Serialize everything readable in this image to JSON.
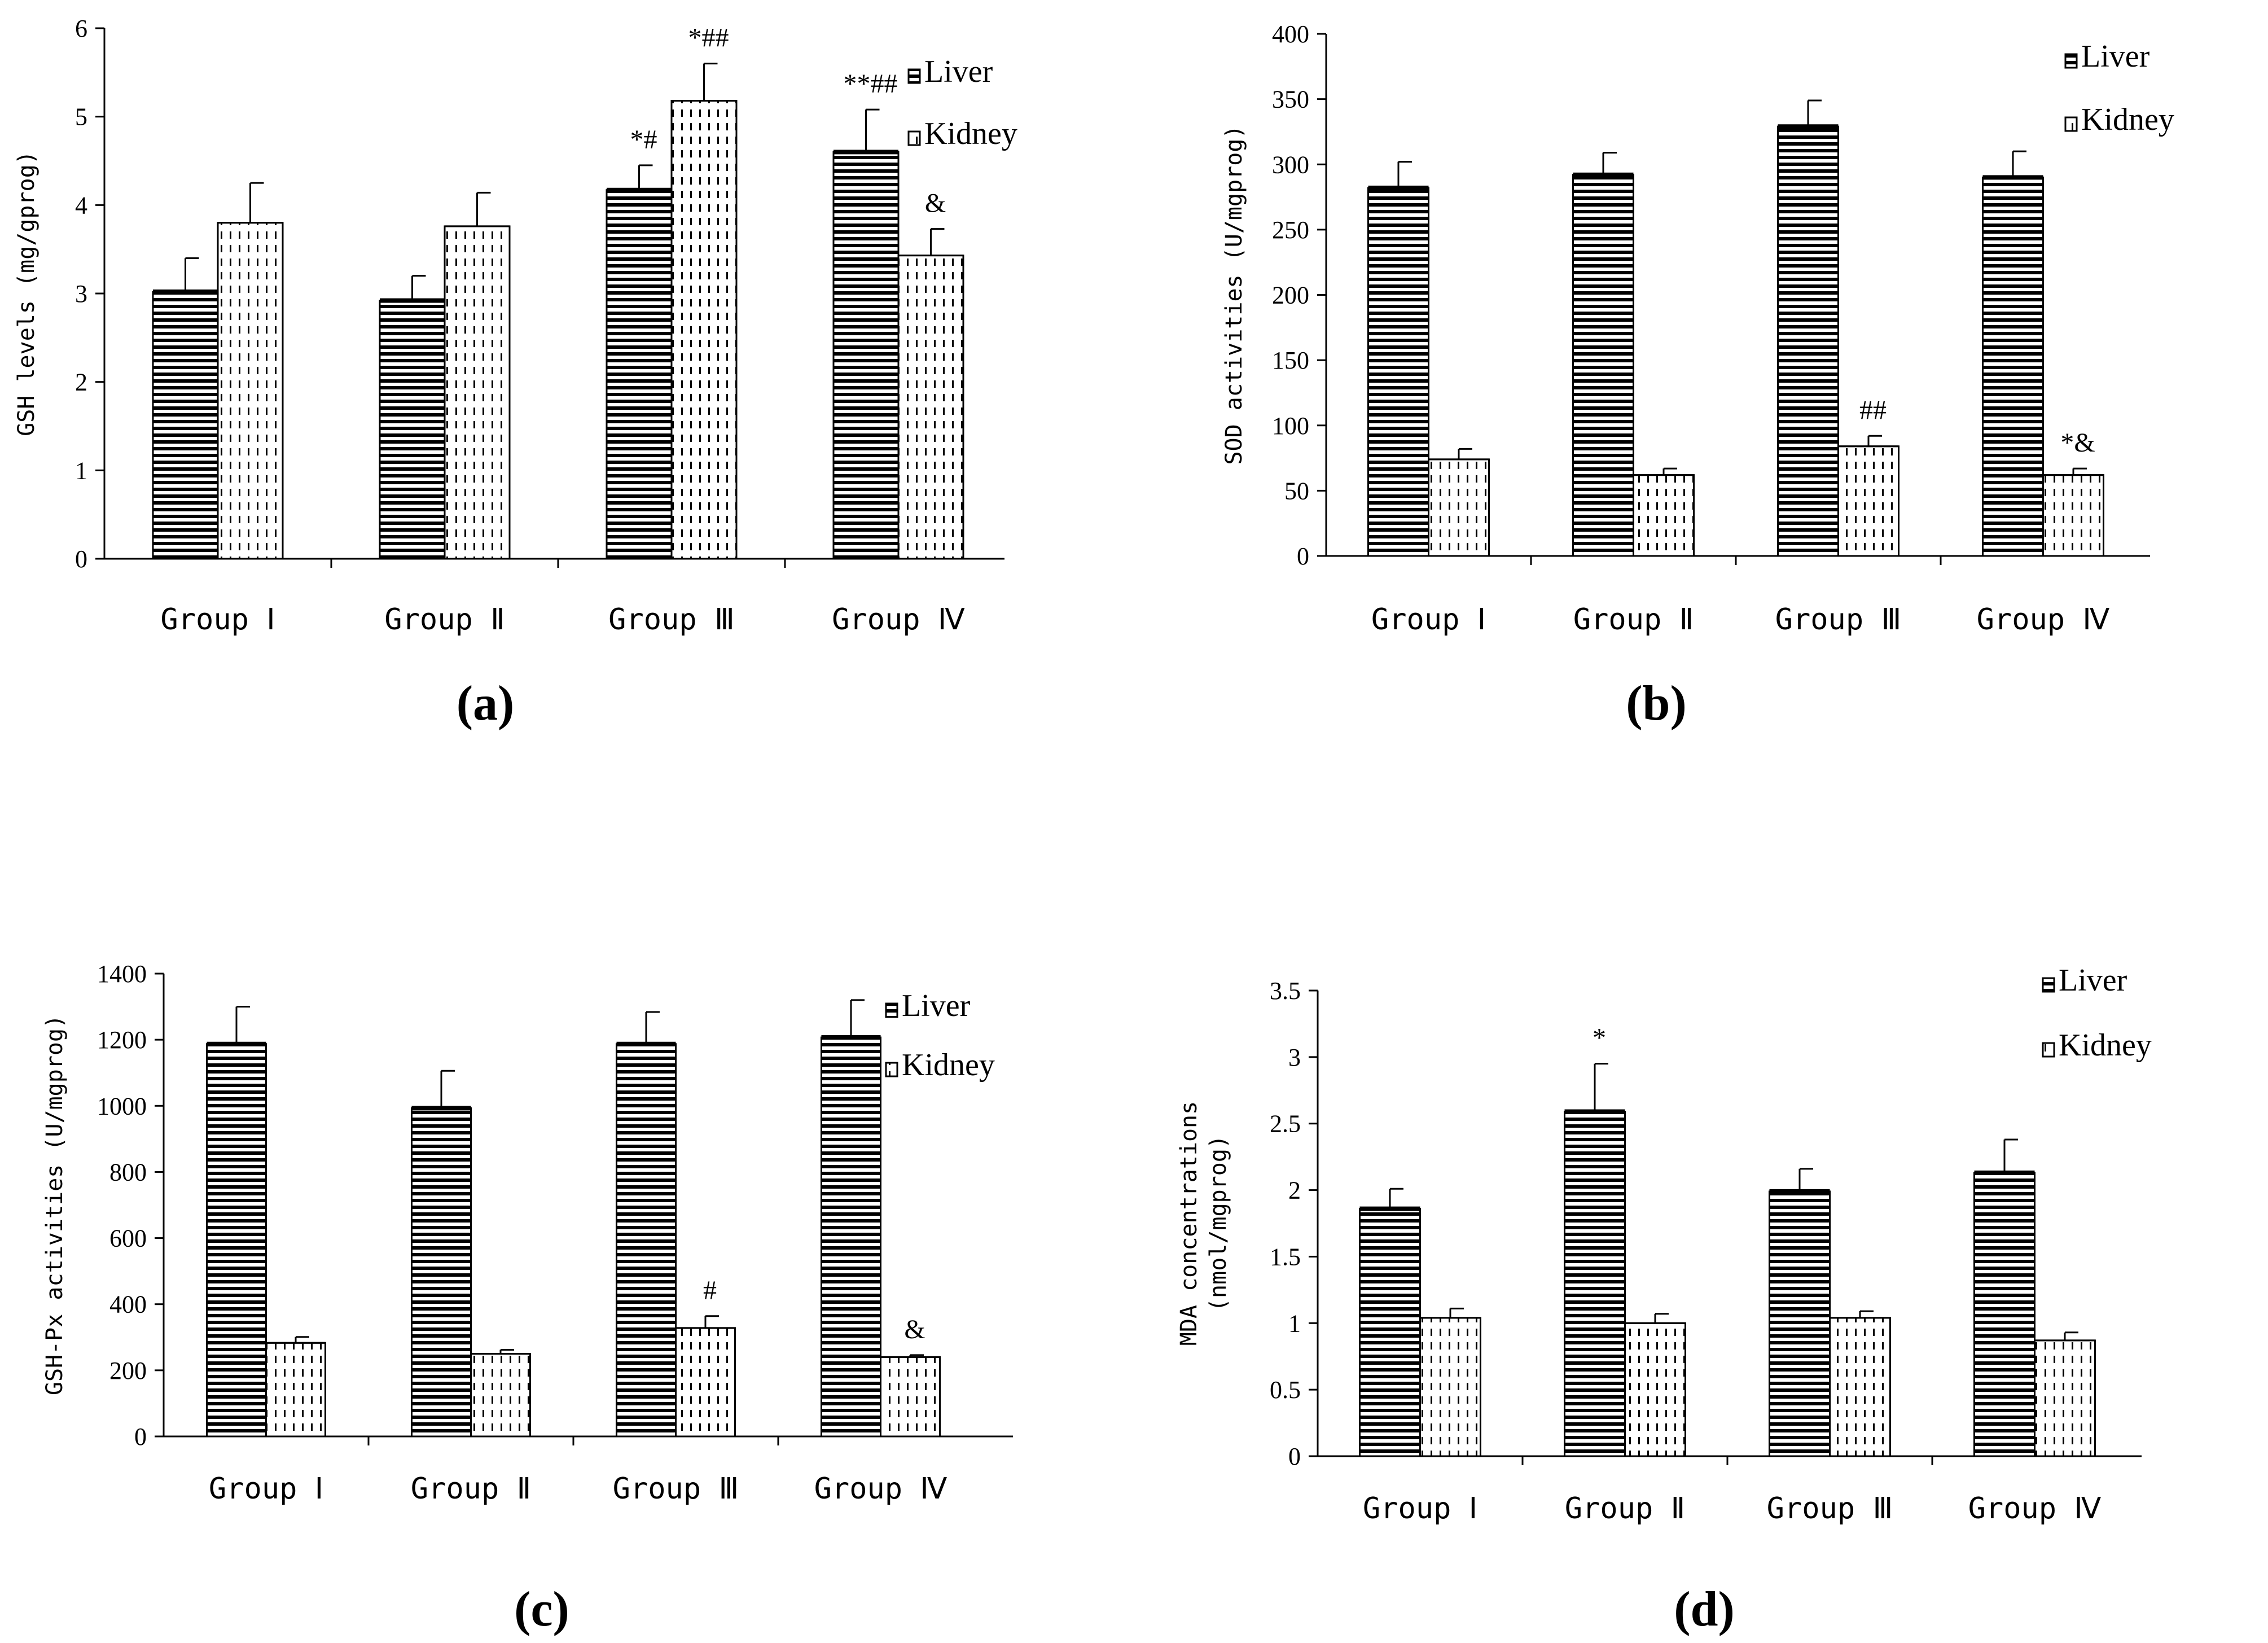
{
  "figure": {
    "panel_labels": [
      "(a)",
      "(b)",
      "(c)",
      "(d)"
    ]
  },
  "chart_data": [
    {
      "type": "bar",
      "panel": "(a)",
      "ylabel": "GSH levels (mg/gprog)",
      "ylim": [
        0,
        6
      ],
      "yticks": [
        0,
        1,
        2,
        3,
        4,
        5,
        6
      ],
      "categories": [
        "Group Ⅰ",
        "Group Ⅱ",
        "Group Ⅲ",
        "Group Ⅳ"
      ],
      "series": [
        {
          "name": "Liver",
          "values": [
            3.02,
            2.92,
            4.17,
            4.6
          ],
          "errors": [
            0.38,
            0.28,
            0.28,
            0.48
          ]
        },
        {
          "name": "Kidney",
          "values": [
            3.8,
            3.76,
            5.18,
            3.43
          ],
          "errors": [
            0.45,
            0.38,
            0.42,
            0.3
          ]
        }
      ],
      "annotations": [
        {
          "category": 2,
          "series": 0,
          "text": "*#"
        },
        {
          "category": 2,
          "series": 1,
          "text": "*##"
        },
        {
          "category": 3,
          "series": 0,
          "text": "**##"
        },
        {
          "category": 3,
          "series": 1,
          "text": "&"
        }
      ],
      "legend": "top-right"
    },
    {
      "type": "bar",
      "panel": "(b)",
      "ylabel": "SOD activities (U/mgprog)",
      "ylim": [
        0,
        400
      ],
      "yticks": [
        0,
        50,
        100,
        150,
        200,
        250,
        300,
        350,
        400
      ],
      "categories": [
        "Group Ⅰ",
        "Group Ⅱ",
        "Group Ⅲ",
        "Group Ⅳ"
      ],
      "series": [
        {
          "name": "Liver",
          "values": [
            282,
            292,
            329,
            290
          ],
          "errors": [
            20,
            17,
            20,
            20
          ]
        },
        {
          "name": "Kidney",
          "values": [
            74,
            62,
            84,
            62
          ],
          "errors": [
            8,
            5,
            8,
            5
          ]
        }
      ],
      "annotations": [
        {
          "category": 2,
          "series": 1,
          "text": "##"
        },
        {
          "category": 3,
          "series": 1,
          "text": "*&"
        }
      ],
      "legend": "top-right"
    },
    {
      "type": "bar",
      "panel": "(c)",
      "ylabel": "GSH-Px activities (U/mgprog)",
      "ylim": [
        0,
        1400
      ],
      "yticks": [
        0,
        200,
        400,
        600,
        800,
        1000,
        1200,
        1400
      ],
      "categories": [
        "Group Ⅰ",
        "Group Ⅱ",
        "Group Ⅲ",
        "Group Ⅳ"
      ],
      "series": [
        {
          "name": "Liver",
          "values": [
            1187,
            993,
            1187,
            1207
          ],
          "errors": [
            113,
            113,
            97,
            113
          ]
        },
        {
          "name": "Kidney",
          "values": [
            283,
            250,
            328,
            240
          ],
          "errors": [
            18,
            12,
            36,
            6
          ]
        }
      ],
      "annotations": [
        {
          "category": 2,
          "series": 1,
          "text": "#"
        },
        {
          "category": 3,
          "series": 1,
          "text": "&"
        }
      ],
      "legend": "top-right"
    },
    {
      "type": "bar",
      "panel": "(d)",
      "ylabel_lines": [
        "MDA concentrations",
        "(nmol/mgprog)"
      ],
      "ylim": [
        0,
        3.5
      ],
      "yticks": [
        0,
        0.5,
        1,
        1.5,
        2,
        2.5,
        3,
        3.5
      ],
      "categories": [
        "Group Ⅰ",
        "Group Ⅱ",
        "Group Ⅲ",
        "Group Ⅳ"
      ],
      "series": [
        {
          "name": "Liver",
          "values": [
            1.86,
            2.59,
            1.99,
            2.13
          ],
          "errors": [
            0.15,
            0.36,
            0.17,
            0.25
          ]
        },
        {
          "name": "Kidney",
          "values": [
            1.04,
            1.0,
            1.04,
            0.87
          ],
          "errors": [
            0.07,
            0.07,
            0.05,
            0.06
          ]
        }
      ],
      "annotations": [
        {
          "category": 1,
          "series": 0,
          "text": "*"
        }
      ],
      "legend": "top-right"
    }
  ]
}
